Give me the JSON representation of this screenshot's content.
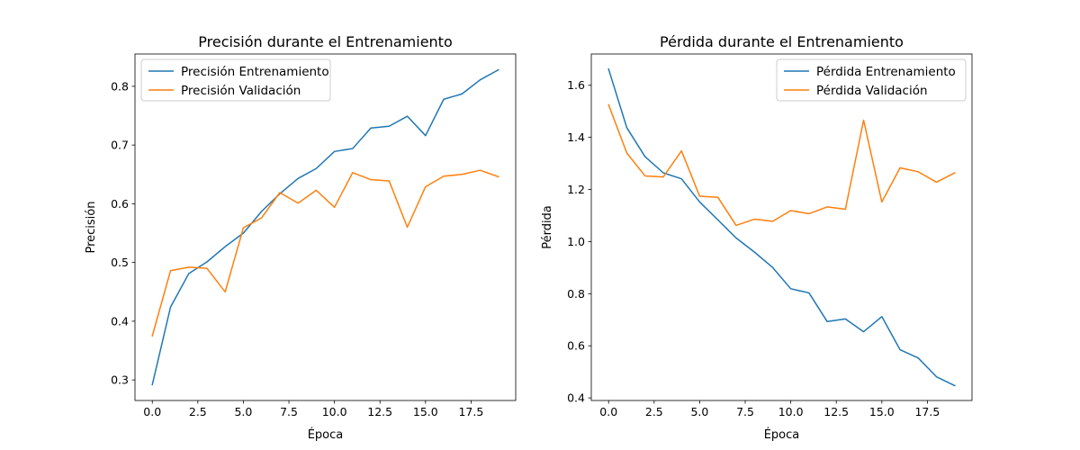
{
  "chart_data": [
    {
      "type": "line",
      "title": "Precisión durante el Entrenamiento",
      "xlabel": "Época",
      "ylabel": "Precisión",
      "xlim": [
        -0.95,
        19.95
      ],
      "ylim": [
        0.265,
        0.855
      ],
      "xticks": [
        0.0,
        2.5,
        5.0,
        7.5,
        10.0,
        12.5,
        15.0,
        17.5
      ],
      "xtick_labels": [
        "0.0",
        "2.5",
        "5.0",
        "7.5",
        "10.0",
        "12.5",
        "15.0",
        "17.5"
      ],
      "yticks": [
        0.3,
        0.4,
        0.5,
        0.6,
        0.7,
        0.8
      ],
      "ytick_labels": [
        "0.3",
        "0.4",
        "0.5",
        "0.6",
        "0.7",
        "0.8"
      ],
      "legend_position": "upper-left",
      "x": [
        0,
        1,
        2,
        3,
        4,
        5,
        6,
        7,
        8,
        9,
        10,
        11,
        12,
        13,
        14,
        15,
        16,
        17,
        18,
        19
      ],
      "series": [
        {
          "name": "Precisión Entrenamiento",
          "color": "#1f77b4",
          "values": [
            0.292,
            0.424,
            0.481,
            0.501,
            0.527,
            0.55,
            0.587,
            0.617,
            0.643,
            0.66,
            0.689,
            0.694,
            0.729,
            0.732,
            0.749,
            0.716,
            0.778,
            0.787,
            0.811,
            0.828
          ]
        },
        {
          "name": "Precisión Validación",
          "color": "#ff7f0e",
          "values": [
            0.375,
            0.486,
            0.492,
            0.49,
            0.45,
            0.559,
            0.576,
            0.619,
            0.601,
            0.623,
            0.594,
            0.653,
            0.641,
            0.639,
            0.56,
            0.629,
            0.647,
            0.65,
            0.657,
            0.646
          ]
        }
      ]
    },
    {
      "type": "line",
      "title": "Pérdida durante el Entrenamiento",
      "xlabel": "Época",
      "ylabel": "Pérdida",
      "xlim": [
        -0.95,
        19.95
      ],
      "ylim": [
        0.39,
        1.72
      ],
      "xticks": [
        0.0,
        2.5,
        5.0,
        7.5,
        10.0,
        12.5,
        15.0,
        17.5
      ],
      "xtick_labels": [
        "0.0",
        "2.5",
        "5.0",
        "7.5",
        "10.0",
        "12.5",
        "15.0",
        "17.5"
      ],
      "yticks": [
        0.4,
        0.6,
        0.8,
        1.0,
        1.2,
        1.4,
        1.6
      ],
      "ytick_labels": [
        "0.4",
        "0.6",
        "0.8",
        "1.0",
        "1.2",
        "1.4",
        "1.6"
      ],
      "legend_position": "upper-right",
      "x": [
        0,
        1,
        2,
        3,
        4,
        5,
        6,
        7,
        8,
        9,
        10,
        11,
        12,
        13,
        14,
        15,
        16,
        17,
        18,
        19
      ],
      "series": [
        {
          "name": "Pérdida Entrenamiento",
          "color": "#1f77b4",
          "values": [
            1.662,
            1.437,
            1.326,
            1.264,
            1.241,
            1.152,
            1.083,
            1.014,
            0.96,
            0.901,
            0.819,
            0.803,
            0.693,
            0.703,
            0.654,
            0.712,
            0.585,
            0.553,
            0.481,
            0.447
          ]
        },
        {
          "name": "Pérdida Validación",
          "color": "#ff7f0e",
          "values": [
            1.525,
            1.34,
            1.252,
            1.248,
            1.348,
            1.174,
            1.17,
            1.062,
            1.086,
            1.078,
            1.119,
            1.107,
            1.133,
            1.124,
            1.466,
            1.152,
            1.283,
            1.268,
            1.228,
            1.264
          ]
        }
      ]
    }
  ]
}
